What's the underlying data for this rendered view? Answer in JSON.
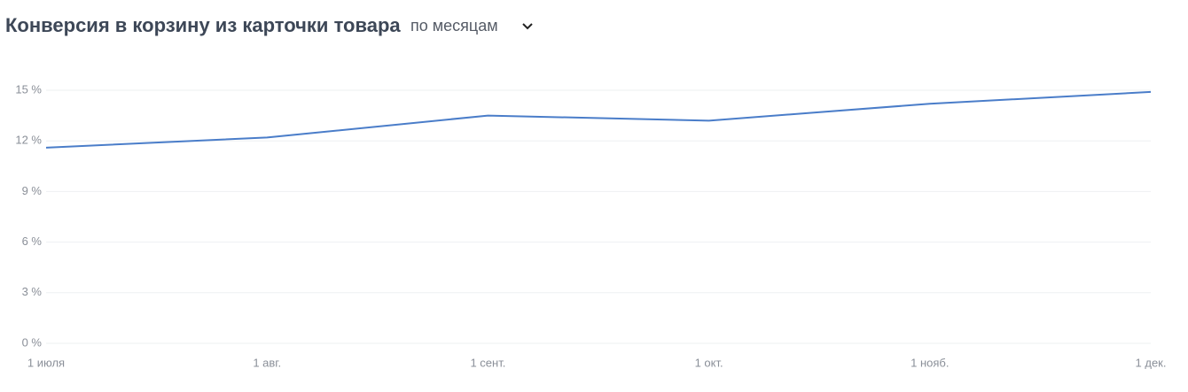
{
  "chart_data": {
    "type": "line",
    "title": "Конверсия в корзину из карточки товара",
    "period": "по месяцам",
    "categories": [
      "1 июля",
      "1 авг.",
      "1 сент.",
      "1 окт.",
      "1 нояб.",
      "1 дек."
    ],
    "series": [
      {
        "color": "#4a7dc9",
        "values": [
          11.6,
          12.2,
          13.5,
          13.2,
          14.2,
          14.9
        ]
      }
    ],
    "ylim": [
      0,
      15
    ],
    "yticks": [
      {
        "value": 0,
        "label": "0 %"
      },
      {
        "value": 3,
        "label": "3 %"
      },
      {
        "value": 6,
        "label": "6 %"
      },
      {
        "value": 9,
        "label": "9 %"
      },
      {
        "value": 12,
        "label": "12 %"
      },
      {
        "value": 15,
        "label": "15 %"
      }
    ],
    "grid": true
  }
}
